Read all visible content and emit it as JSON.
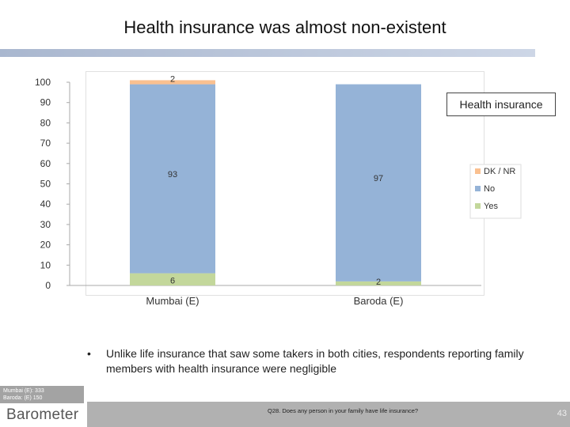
{
  "slide": {
    "title": "Health insurance was almost non-existent",
    "bullet_symbol": "•",
    "bullet_text": "Unlike life insurance that saw some takers in both cities, respondents reporting family members with health insurance were negligible",
    "base_notes": [
      "Mumbai (E): 333",
      "Baroda: (E) 150"
    ],
    "question": "Q28. Does any person in your family have life insurance?",
    "page_number": "43",
    "logo_text": "Barometer"
  },
  "chart_data": {
    "type": "bar",
    "stacked": true,
    "title": "Health insurance",
    "categories": [
      "Mumbai (E)",
      "Baroda (E)"
    ],
    "series": [
      {
        "name": "Yes",
        "values": [
          6,
          2
        ],
        "color": "#c3d79b"
      },
      {
        "name": "No",
        "values": [
          93,
          97
        ],
        "color": "#95b3d7"
      },
      {
        "name": "DK / NR",
        "values": [
          2,
          0
        ],
        "color": "#fac090"
      }
    ],
    "data_labels": [
      {
        "category": "Mumbai (E)",
        "series": "Yes",
        "text": "6"
      },
      {
        "category": "Mumbai (E)",
        "series": "No",
        "text": "93"
      },
      {
        "category": "Mumbai (E)",
        "series": "DK / NR",
        "text": "2"
      },
      {
        "category": "Baroda (E)",
        "series": "Yes",
        "text": "2"
      },
      {
        "category": "Baroda (E)",
        "series": "No",
        "text": "97"
      }
    ],
    "ylim": [
      0,
      100
    ],
    "y_ticks": [
      0,
      10,
      20,
      30,
      40,
      50,
      60,
      70,
      80,
      90,
      100
    ],
    "legend_order": [
      "DK / NR",
      "No",
      "Yes"
    ],
    "legend_position": "right",
    "grid": false
  }
}
